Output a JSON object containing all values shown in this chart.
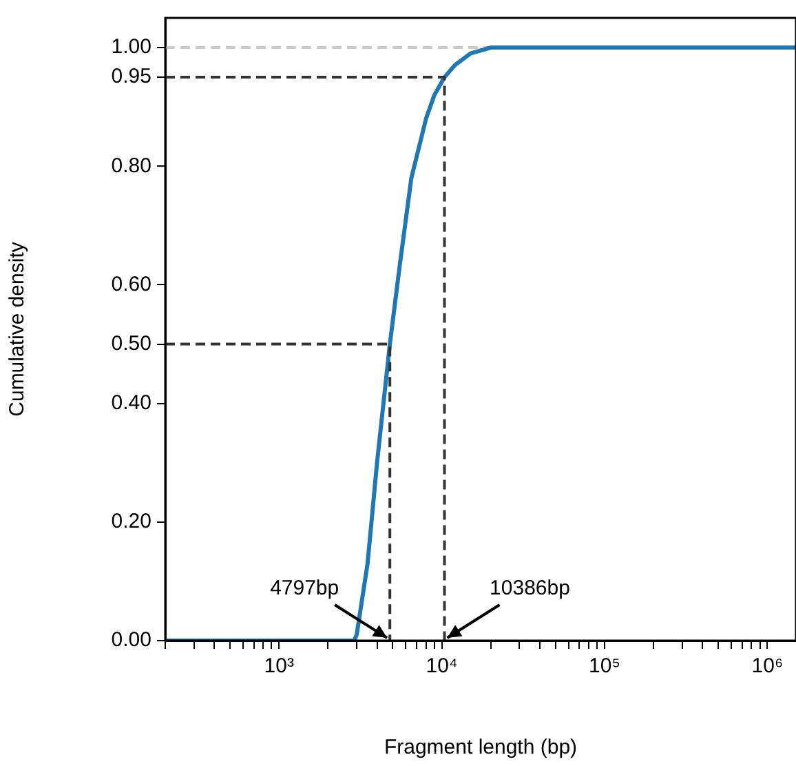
{
  "chart_data": {
    "type": "line",
    "xlabel": "Fragment length (bp)",
    "ylabel": "Cumulative density",
    "log": "x",
    "grid": false,
    "legend": false,
    "marker": "none",
    "xlim": [
      200,
      1500000
    ],
    "ylim": [
      0,
      1.05
    ],
    "xticks": [
      {
        "value": 200,
        "label": null
      },
      {
        "value": 300,
        "label": null
      },
      {
        "value": 400,
        "label": null
      },
      {
        "value": 500,
        "label": null
      },
      {
        "value": 600,
        "label": null
      },
      {
        "value": 700,
        "label": null
      },
      {
        "value": 800,
        "label": null
      },
      {
        "value": 900,
        "label": null
      },
      {
        "value": 1000,
        "label": "10³"
      },
      {
        "value": 2000,
        "label": null
      },
      {
        "value": 3000,
        "label": null
      },
      {
        "value": 4000,
        "label": null
      },
      {
        "value": 5000,
        "label": null
      },
      {
        "value": 6000,
        "label": null
      },
      {
        "value": 7000,
        "label": null
      },
      {
        "value": 8000,
        "label": null
      },
      {
        "value": 9000,
        "label": null
      },
      {
        "value": 10000,
        "label": "10⁴"
      },
      {
        "value": 20000,
        "label": null
      },
      {
        "value": 30000,
        "label": null
      },
      {
        "value": 40000,
        "label": null
      },
      {
        "value": 50000,
        "label": null
      },
      {
        "value": 60000,
        "label": null
      },
      {
        "value": 70000,
        "label": null
      },
      {
        "value": 80000,
        "label": null
      },
      {
        "value": 90000,
        "label": null
      },
      {
        "value": 100000,
        "label": "10⁵"
      },
      {
        "value": 200000,
        "label": null
      },
      {
        "value": 300000,
        "label": null
      },
      {
        "value": 400000,
        "label": null
      },
      {
        "value": 500000,
        "label": null
      },
      {
        "value": 600000,
        "label": null
      },
      {
        "value": 700000,
        "label": null
      },
      {
        "value": 800000,
        "label": null
      },
      {
        "value": 900000,
        "label": null
      },
      {
        "value": 1000000,
        "label": "10⁶"
      }
    ],
    "yticks": [
      {
        "value": 0,
        "label": "0.00"
      },
      {
        "value": 0.2,
        "label": "0.20"
      },
      {
        "value": 0.4,
        "label": "0.40"
      },
      {
        "value": 0.5,
        "label": "0.50"
      },
      {
        "value": 0.6,
        "label": "0.60"
      },
      {
        "value": 0.8,
        "label": "0.80"
      },
      {
        "value": 0.95,
        "label": "0.95"
      },
      {
        "value": 1,
        "label": "1.00"
      }
    ],
    "ref_lines": [
      {
        "axis": "y",
        "value": 1,
        "color": "#cccccc",
        "line_style": "dashed"
      }
    ],
    "series": [
      {
        "color": "#1f77b4",
        "line_style": "solid",
        "x": [
          200,
          2000,
          2900,
          3000,
          3500,
          4000,
          4797,
          5500,
          6500,
          8000,
          9000,
          10386,
          12000,
          15000,
          20000,
          30000,
          1500000
        ],
        "values": [
          0,
          0,
          0,
          0.01,
          0.13,
          0.3,
          0.5,
          0.63,
          0.78,
          0.88,
          0.92,
          0.95,
          0.97,
          0.99,
          1,
          1,
          1
        ]
      },
      {
        "color": "#333333",
        "line_style": "dashed",
        "x": [
          200,
          4797,
          4797
        ],
        "values": [
          0.5,
          0.5,
          0
        ]
      },
      {
        "color": "#333333",
        "line_style": "dashed",
        "x": [
          200,
          10386,
          10386
        ],
        "values": [
          0.95,
          0.95,
          0
        ]
      }
    ],
    "annotations": [
      {
        "text": "4797bp",
        "x": 4797,
        "y": 0
      },
      {
        "text": "10386bp",
        "x": 10386,
        "y": 0
      }
    ]
  }
}
